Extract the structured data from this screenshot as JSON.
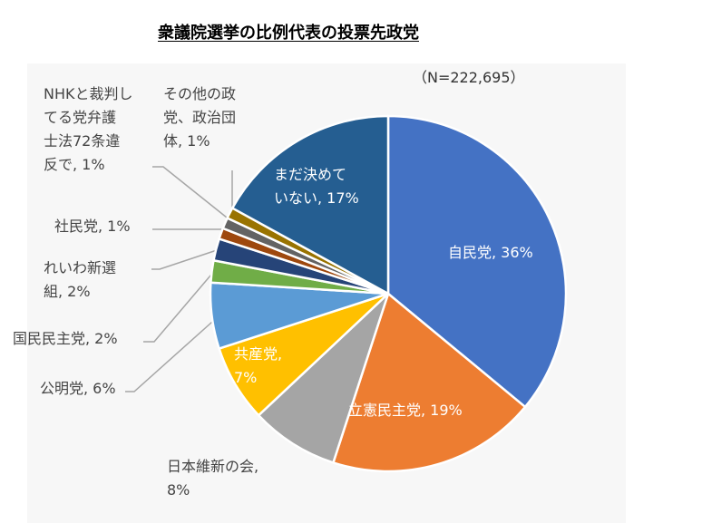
{
  "chart_data": {
    "type": "pie",
    "title": "衆議院選挙の比例代表の投票先政党",
    "subtitle": "（N=222,695）",
    "start_angle_deg": 0,
    "direction": "clockwise",
    "slices": [
      {
        "label_lines": [
          "自民党, 36%"
        ],
        "category": "自民党",
        "value": 36,
        "color": "#4472c4"
      },
      {
        "label_lines": [
          "立憲民主党, 19%"
        ],
        "category": "立憲民主党",
        "value": 19,
        "color": "#ed7d31"
      },
      {
        "label_lines": [
          "日本維新の会,",
          "8%"
        ],
        "category": "日本維新の会",
        "value": 8,
        "color": "#a5a5a5"
      },
      {
        "label_lines": [
          "共産党,",
          "7%"
        ],
        "category": "共産党",
        "value": 7,
        "color": "#ffc000"
      },
      {
        "label_lines": [
          "公明党, 6%"
        ],
        "category": "公明党",
        "value": 6,
        "color": "#5b9bd5"
      },
      {
        "label_lines": [
          "国民民主党, 2%"
        ],
        "category": "国民民主党",
        "value": 2,
        "color": "#70ad47"
      },
      {
        "label_lines": [
          "れいわ新選",
          "組, 2%"
        ],
        "category": "れいわ新選組",
        "value": 2,
        "color": "#264478"
      },
      {
        "label_lines": [
          "社民党, 1%"
        ],
        "category": "社民党",
        "value": 1,
        "color": "#9e480e"
      },
      {
        "label_lines": [
          "NHKと裁判し",
          "てる党弁護",
          "士法72条違",
          "反で, 1%"
        ],
        "category": "NHKと裁判してる党弁護士法72条違反で",
        "value": 1,
        "color": "#636363"
      },
      {
        "label_lines": [
          "その他の政",
          "党、政治団",
          "体, 1%"
        ],
        "category": "その他の政党、政治団体",
        "value": 1,
        "color": "#997300"
      },
      {
        "label_lines": [
          "まだ決めて",
          "いない, 17%"
        ],
        "category": "まだ決めていない",
        "value": 17,
        "color": "#255e91"
      }
    ]
  }
}
